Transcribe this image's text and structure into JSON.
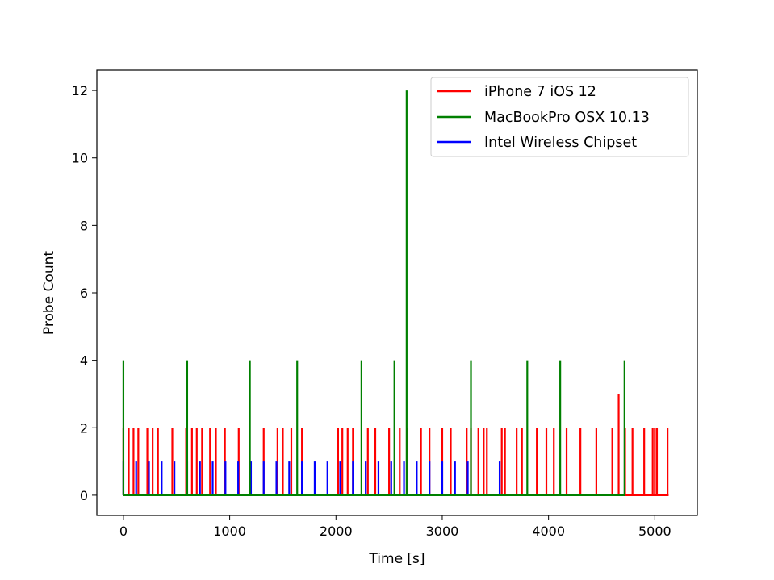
{
  "chart_data": {
    "type": "line",
    "xlabel": "Time [s]",
    "ylabel": "Probe Count",
    "xlim": [
      -250,
      5400
    ],
    "ylim": [
      -0.6,
      12.6
    ],
    "x_ticks": [
      0,
      1000,
      2000,
      3000,
      4000,
      5000
    ],
    "y_ticks": [
      0,
      2,
      4,
      6,
      8,
      10,
      12
    ],
    "grid": false,
    "legend_position": "top-right",
    "series": [
      {
        "name": "iPhone 7 iOS 12",
        "color": "#ff0000",
        "x_range": [
          0,
          5130
        ],
        "spikes": [
          {
            "x": 0,
            "y": 2
          },
          {
            "x": 50,
            "y": 2
          },
          {
            "x": 95,
            "y": 2
          },
          {
            "x": 140,
            "y": 2
          },
          {
            "x": 225,
            "y": 2
          },
          {
            "x": 275,
            "y": 2
          },
          {
            "x": 325,
            "y": 2
          },
          {
            "x": 460,
            "y": 2
          },
          {
            "x": 590,
            "y": 2
          },
          {
            "x": 645,
            "y": 2
          },
          {
            "x": 690,
            "y": 2
          },
          {
            "x": 740,
            "y": 2
          },
          {
            "x": 815,
            "y": 2
          },
          {
            "x": 870,
            "y": 2
          },
          {
            "x": 955,
            "y": 2
          },
          {
            "x": 1085,
            "y": 2
          },
          {
            "x": 1320,
            "y": 2
          },
          {
            "x": 1450,
            "y": 2
          },
          {
            "x": 1500,
            "y": 2
          },
          {
            "x": 1580,
            "y": 2
          },
          {
            "x": 1680,
            "y": 2
          },
          {
            "x": 2020,
            "y": 2
          },
          {
            "x": 2060,
            "y": 2
          },
          {
            "x": 2110,
            "y": 2
          },
          {
            "x": 2160,
            "y": 2
          },
          {
            "x": 2300,
            "y": 2
          },
          {
            "x": 2370,
            "y": 2
          },
          {
            "x": 2500,
            "y": 2
          },
          {
            "x": 2600,
            "y": 2
          },
          {
            "x": 2670,
            "y": 2
          },
          {
            "x": 2800,
            "y": 2
          },
          {
            "x": 2880,
            "y": 2
          },
          {
            "x": 3000,
            "y": 2
          },
          {
            "x": 3080,
            "y": 2
          },
          {
            "x": 3230,
            "y": 2
          },
          {
            "x": 3270,
            "y": 2
          },
          {
            "x": 3340,
            "y": 2
          },
          {
            "x": 3390,
            "y": 2
          },
          {
            "x": 3420,
            "y": 2
          },
          {
            "x": 3560,
            "y": 2
          },
          {
            "x": 3590,
            "y": 2
          },
          {
            "x": 3700,
            "y": 2
          },
          {
            "x": 3750,
            "y": 2
          },
          {
            "x": 3890,
            "y": 2
          },
          {
            "x": 3980,
            "y": 2
          },
          {
            "x": 4050,
            "y": 2
          },
          {
            "x": 4170,
            "y": 2
          },
          {
            "x": 4300,
            "y": 2
          },
          {
            "x": 4450,
            "y": 2
          },
          {
            "x": 4600,
            "y": 2
          },
          {
            "x": 4660,
            "y": 3
          },
          {
            "x": 4720,
            "y": 2
          },
          {
            "x": 4790,
            "y": 2
          },
          {
            "x": 4900,
            "y": 2
          },
          {
            "x": 4980,
            "y": 2
          },
          {
            "x": 5000,
            "y": 2
          },
          {
            "x": 5020,
            "y": 2
          },
          {
            "x": 5120,
            "y": 2
          }
        ]
      },
      {
        "name": "MacBookPro OSX 10.13",
        "color": "#008000",
        "x_range": [
          0,
          4720
        ],
        "spikes": [
          {
            "x": 0,
            "y": 4
          },
          {
            "x": 600,
            "y": 4
          },
          {
            "x": 1190,
            "y": 4
          },
          {
            "x": 1635,
            "y": 4
          },
          {
            "x": 2240,
            "y": 4
          },
          {
            "x": 2550,
            "y": 4
          },
          {
            "x": 2665,
            "y": 12
          },
          {
            "x": 3270,
            "y": 4
          },
          {
            "x": 3800,
            "y": 4
          },
          {
            "x": 4110,
            "y": 4
          },
          {
            "x": 4715,
            "y": 4
          }
        ]
      },
      {
        "name": "Intel Wireless Chipset",
        "color": "#0000ff",
        "x_range": [
          0,
          3540
        ],
        "spikes": [
          {
            "x": 0,
            "y": 1
          },
          {
            "x": 120,
            "y": 1
          },
          {
            "x": 240,
            "y": 1
          },
          {
            "x": 360,
            "y": 1
          },
          {
            "x": 480,
            "y": 1
          },
          {
            "x": 600,
            "y": 1
          },
          {
            "x": 720,
            "y": 1
          },
          {
            "x": 840,
            "y": 1
          },
          {
            "x": 960,
            "y": 1
          },
          {
            "x": 1080,
            "y": 1
          },
          {
            "x": 1200,
            "y": 1
          },
          {
            "x": 1320,
            "y": 1
          },
          {
            "x": 1440,
            "y": 1
          },
          {
            "x": 1560,
            "y": 1
          },
          {
            "x": 1680,
            "y": 1
          },
          {
            "x": 1800,
            "y": 1
          },
          {
            "x": 1920,
            "y": 1
          },
          {
            "x": 2040,
            "y": 1
          },
          {
            "x": 2160,
            "y": 1
          },
          {
            "x": 2280,
            "y": 1
          },
          {
            "x": 2400,
            "y": 1
          },
          {
            "x": 2520,
            "y": 1
          },
          {
            "x": 2640,
            "y": 1
          },
          {
            "x": 2760,
            "y": 1
          },
          {
            "x": 2880,
            "y": 1
          },
          {
            "x": 3000,
            "y": 1
          },
          {
            "x": 3120,
            "y": 1
          },
          {
            "x": 3240,
            "y": 1
          },
          {
            "x": 3540,
            "y": 1
          }
        ]
      }
    ]
  }
}
